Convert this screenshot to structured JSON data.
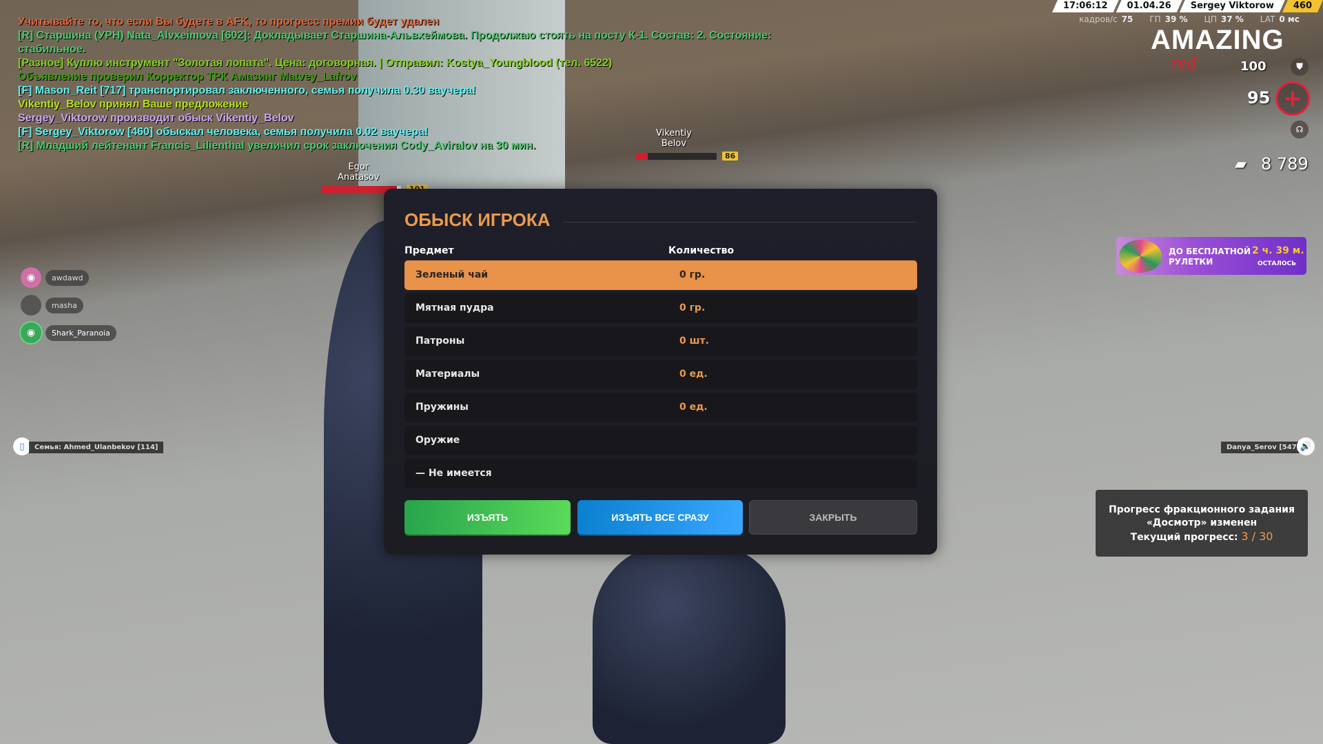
{
  "chat": [
    {
      "text": "Учитывайте то, что если Вы будете в AFK, то прогресс премии будет удален",
      "color": "#e0643a"
    },
    {
      "text": "[R] Старшина (УРН) Nata_Alvxeimova [602]: Докладывает Старшина-Альвхеймова. Продолжаю стоять на посту К-1. Состав: 2. Состояние:",
      "color": "#4cc96e"
    },
    {
      "text": "стабильное.",
      "color": "#4cc96e"
    },
    {
      "text": "[Разное] Куплю инструмент \"Золотая лопата\". Цена: договорная. | Отправил: Kostya_Youngblood (тел. 6522)",
      "color": "#7fd11c"
    },
    {
      "text": "Объявление проверил Корректор ТРК Амазинг Matvey_Lafrov",
      "color": "#3a9a18"
    },
    {
      "text": "[F] Mason_Reit [717] транспортировал заключенного, семья получила 0.30 ваучера!",
      "color": "#5ef0f0"
    },
    {
      "text": "Vikentiy_Belov принял Ваше предложение",
      "color": "#b8e01c"
    },
    {
      "text": "Sergey_Viktorow производит обыск Vikentiy_Belov",
      "color": "#c8a8f0"
    },
    {
      "text": "[F] Sergey_Viktorow [460] обыскал человека, семья получила 0.02 ваучера!",
      "color": "#5ef0f0"
    },
    {
      "text": "[R] Младший лейтенант Francis_Lilienthal увеличил срок заключения Cody_Aviralov на 30 мин.",
      "color": "#4cc96e"
    }
  ],
  "players": [
    {
      "first": "Vikentiy",
      "last": "Belov",
      "level": "86",
      "health": 0.15
    },
    {
      "first": "Egor",
      "last": "Anatasov",
      "level": "101",
      "health": 0.95
    }
  ],
  "topbar": {
    "time": "17:06:12",
    "date": "01.04.26",
    "name": "Sergey Viktorow",
    "id": "460"
  },
  "stats": {
    "fps_label": "кадров/с",
    "fps": "75",
    "gpu_label": "ГП",
    "gpu": "39 %",
    "cpu_label": "ЦП",
    "cpu": "37 %",
    "lat_label": "LAT",
    "lat": "0 мс"
  },
  "logo": {
    "main": "AMAZING",
    "sub": "red"
  },
  "hud": {
    "armor": "100",
    "health": "95",
    "money": "8 789"
  },
  "voice": [
    {
      "name": "awdawd",
      "color": "#d070a8"
    },
    {
      "name": "masha",
      "color": "#666"
    },
    {
      "name": "Shark_Paranoia",
      "color": "#3aa85a"
    }
  ],
  "radio": {
    "family": "Семья:  Ahmed_Ulanbekov [114]",
    "speaker": "Danya_Serov [547]"
  },
  "search": {
    "title": "ОБЫСК ИГРОКА",
    "col_item": "Предмет",
    "col_qty": "Количество",
    "rows": [
      {
        "item": "Зеленый чай",
        "qty": "0 гр.",
        "selected": true
      },
      {
        "item": "Мятная пудра",
        "qty": "0 гр."
      },
      {
        "item": "Патроны",
        "qty": "0 шт."
      },
      {
        "item": "Материалы",
        "qty": "0 ед."
      },
      {
        "item": "Пружины",
        "qty": "0 ед."
      },
      {
        "item": "Оружие",
        "qty": ""
      },
      {
        "item": "— Не имеется",
        "qty": ""
      }
    ],
    "btn_take": "ИЗЪЯТЬ",
    "btn_take_all": "ИЗЪЯТЬ ВСЕ СРАЗУ",
    "btn_close": "ЗАКРЫТЬ",
    "accent": "#e8924a"
  },
  "banner": {
    "line1": "ДО БЕСПЛАТНОЙ",
    "line2": "РУЛЕТКИ",
    "time": "2 ч. 39 м.",
    "left": "ОСТАЛОСЬ"
  },
  "progress": {
    "line1": "Прогресс фракционного задания",
    "line2": "«Досмотр» изменен",
    "label": "Текущий прогресс:",
    "value": "3 / 30"
  }
}
